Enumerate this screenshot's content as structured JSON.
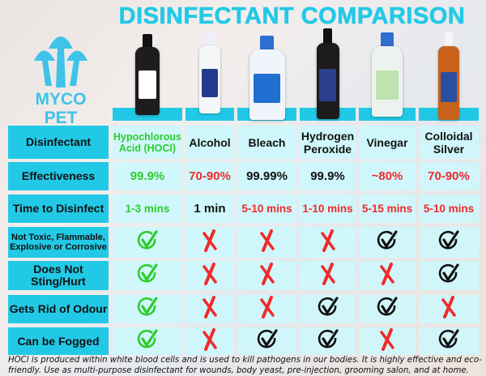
{
  "title": "DISINFECTANT COMPARISON",
  "logo": {
    "line1": "MYCO",
    "line2": "PET",
    "icon": "mushroom-logo-icon"
  },
  "colors": {
    "accent": "#22c9e6",
    "cell": "#cdf7fc",
    "good": "#2ecc2e",
    "bad": "#f02a2a",
    "neutral": "#111111"
  },
  "products": [
    {
      "name": "Hypochlorous Acid (HOCl)",
      "color": "green",
      "bottle": "black-spray-bottle"
    },
    {
      "name": "Alcohol",
      "color": "black",
      "bottle": "white-alcohol-bottle"
    },
    {
      "name": "Bleach",
      "color": "black",
      "bottle": "clorox-jug"
    },
    {
      "name": "Hydrogen Peroxide",
      "color": "black",
      "bottle": "brown-peroxide-bottle"
    },
    {
      "name": "Vinegar",
      "color": "black",
      "bottle": "vinegar-jug"
    },
    {
      "name": "Colloidal Silver",
      "color": "black",
      "bottle": "amber-spray-bottle"
    }
  ],
  "rows": [
    {
      "label": "Disinfectant",
      "type": "header"
    },
    {
      "label": "Effectiveness",
      "type": "text",
      "values": [
        {
          "t": "99.9%",
          "c": "green"
        },
        {
          "t": "70-90%",
          "c": "red"
        },
        {
          "t": "99.99%",
          "c": "black"
        },
        {
          "t": "99.9%",
          "c": "black"
        },
        {
          "t": "~80%",
          "c": "red"
        },
        {
          "t": "70-90%",
          "c": "red"
        }
      ]
    },
    {
      "label": "Time to Disinfect",
      "type": "text",
      "values": [
        {
          "t": "1-3 mins",
          "c": "green"
        },
        {
          "t": "1 min",
          "c": "black"
        },
        {
          "t": "5-10 mins",
          "c": "red"
        },
        {
          "t": "1-10 mins",
          "c": "red"
        },
        {
          "t": "5-15 mins",
          "c": "red"
        },
        {
          "t": "5-10 mins",
          "c": "red"
        }
      ]
    },
    {
      "label": "Not Toxic, Flammable, Explosive or Corrosive",
      "type": "mark",
      "small": true,
      "values": [
        "green-check",
        "cross",
        "cross",
        "cross",
        "check",
        "check"
      ]
    },
    {
      "label": "Does Not Sting/Hurt",
      "type": "mark",
      "values": [
        "green-check",
        "cross",
        "cross",
        "cross",
        "cross",
        "check"
      ]
    },
    {
      "label": "Gets Rid of Odour",
      "type": "mark",
      "values": [
        "green-check",
        "cross",
        "cross",
        "check",
        "check",
        "cross"
      ]
    },
    {
      "label": "Can be Fogged",
      "type": "mark",
      "values": [
        "green-check",
        "cross",
        "check",
        "check",
        "cross",
        "check"
      ]
    }
  ],
  "footnote": "HOCl is produced within white blood cells and is used to kill pathogens in our bodies. It is highly effective and eco-friendly. Use as multi-purpose disinfectant for wounds, body yeast, pre-injection, grooming salon, and at home."
}
